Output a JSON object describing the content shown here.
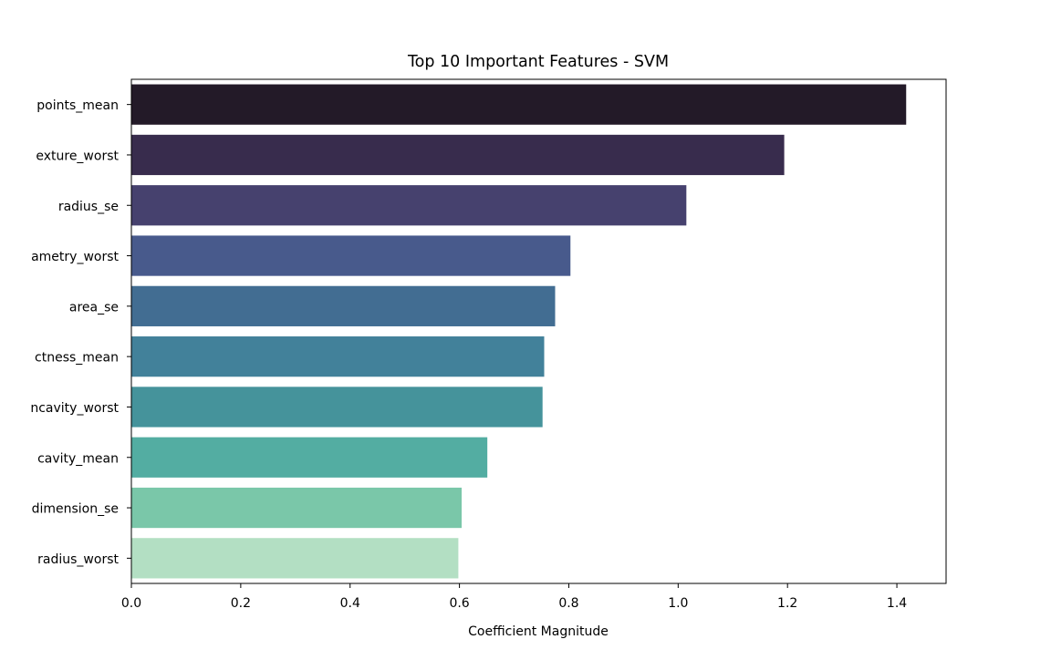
{
  "chart_data": {
    "type": "bar",
    "orientation": "horizontal",
    "title": "Top 10 Important Features - SVM",
    "xlabel": "Coefficient Magnitude",
    "ylabel": "",
    "xlim": [
      0,
      1.49
    ],
    "xticks": [
      0.0,
      0.2,
      0.4,
      0.6,
      0.8,
      1.0,
      1.2,
      1.4
    ],
    "xtick_labels": [
      "0.0",
      "0.2",
      "0.4",
      "0.6",
      "0.8",
      "1.0",
      "1.2",
      "1.4"
    ],
    "grid": false,
    "categories": [
      "points_mean",
      "exture_worst",
      "radius_se",
      "ametry_worst",
      "area_se",
      "ctness_mean",
      "ncavity_worst",
      "cavity_mean",
      "dimension_se",
      "radius_worst"
    ],
    "values": [
      1.417,
      1.194,
      1.015,
      0.803,
      0.775,
      0.755,
      0.752,
      0.651,
      0.604,
      0.598
    ],
    "colors": [
      "#231a28",
      "#382c4d",
      "#46416e",
      "#485a8c",
      "#426d92",
      "#42819a",
      "#45939b",
      "#53ada2",
      "#7ac7a9",
      "#b3dfc3"
    ]
  }
}
